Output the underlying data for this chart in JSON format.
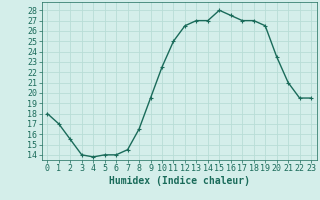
{
  "x": [
    0,
    1,
    2,
    3,
    4,
    5,
    6,
    7,
    8,
    9,
    10,
    11,
    12,
    13,
    14,
    15,
    16,
    17,
    18,
    19,
    20,
    21,
    22,
    23
  ],
  "y": [
    18,
    17,
    15.5,
    14,
    13.8,
    14,
    14,
    14.5,
    16.5,
    19.5,
    22.5,
    25,
    26.5,
    27,
    27,
    28,
    27.5,
    27,
    27,
    26.5,
    23.5,
    21,
    19.5,
    19.5
  ],
  "line_color": "#1a6b5a",
  "marker": "+",
  "marker_size": 3,
  "xlabel": "Humidex (Indice chaleur)",
  "ylabel_ticks": [
    14,
    15,
    16,
    17,
    18,
    19,
    20,
    21,
    22,
    23,
    24,
    25,
    26,
    27,
    28
  ],
  "ylim": [
    13.5,
    28.8
  ],
  "xlim": [
    -0.5,
    23.5
  ],
  "grid_color": "#b8ddd6",
  "bg_color": "#d4eeea",
  "xlabel_fontsize": 7,
  "tick_fontsize": 6,
  "line_width": 1.0
}
